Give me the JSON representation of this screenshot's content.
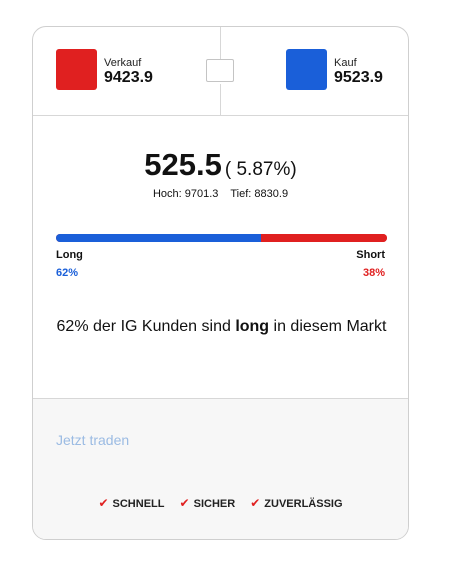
{
  "price": {
    "sell_label": "Verkauf",
    "sell_value": "9423.9",
    "buy_label": "Kauf",
    "buy_value": "9523.9",
    "sell_color": "#e02020",
    "buy_color": "#1a5fd9"
  },
  "change": {
    "value": "525.5",
    "percent": "( 5.87%)",
    "high": "Hoch: 9701.3",
    "low": "Tief: 8830.9"
  },
  "sentiment": {
    "long_label": "Long",
    "short_label": "Short",
    "long_pct": "62%",
    "short_pct": "38%",
    "long_fraction": 0.62,
    "short_fraction": 0.38,
    "text_prefix": "62% der IG Kunden sind ",
    "text_bold": "long",
    "text_suffix": " in diesem Markt"
  },
  "cta": {
    "trade_label": "Jetzt traden"
  },
  "features": [
    {
      "label": "SCHNELL",
      "icon": "check-icon"
    },
    {
      "label": "SICHER",
      "icon": "check-icon"
    },
    {
      "label": "ZUVERLÄSSIG",
      "icon": "check-icon"
    }
  ]
}
